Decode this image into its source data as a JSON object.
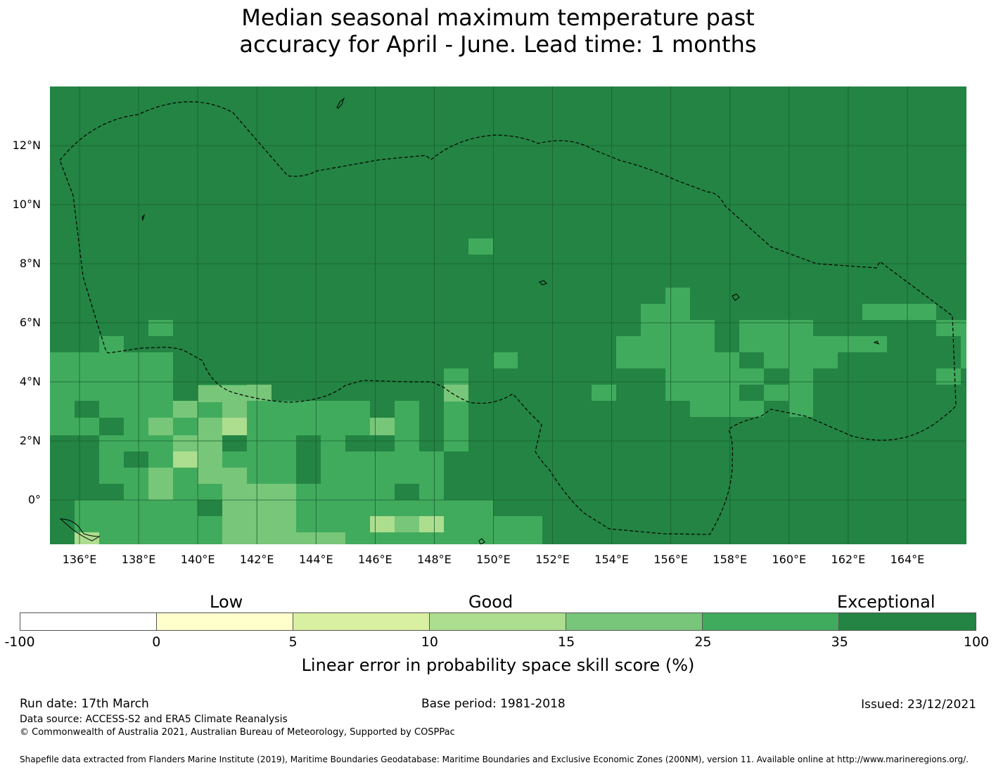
{
  "title": {
    "line1": "Median seasonal maximum temperature past",
    "line2": "accuracy for April - June. Lead time: 1 months"
  },
  "map": {
    "lat_labels": [
      "12°N",
      "10°N",
      "8°N",
      "6°N",
      "4°N",
      "2°N",
      "0°"
    ],
    "lon_labels": [
      "136°E",
      "138°E",
      "140°E",
      "142°E",
      "144°E",
      "146°E",
      "148°E",
      "150°E",
      "152°E",
      "154°E",
      "156°E",
      "158°E",
      "160°E",
      "162°E",
      "164°E"
    ],
    "extent": {
      "lon_min": 135.0,
      "lon_max": 166.0,
      "lat_min": -1.5,
      "lat_max": 14.0
    },
    "grid_resolution_deg": 0.833,
    "background_category": "35 to 100",
    "eez_boundary_color": "#000000"
  },
  "colorbar": {
    "words": {
      "low": "Low",
      "good": "Good",
      "exceptional": "Exceptional"
    },
    "ticks": [
      "-100",
      "0",
      "5",
      "10",
      "15",
      "25",
      "35",
      "100"
    ],
    "colors": [
      "#ffffff",
      "#ffffcc",
      "#d9f0a3",
      "#addd8e",
      "#78c679",
      "#41ab5d",
      "#238443"
    ],
    "label": "Linear error in probability space skill score (%)"
  },
  "footer": {
    "run_date": "Run date: 17th March",
    "base_period": "Base period: 1981-2018",
    "issued": "Issued: 23/12/2021",
    "data_source": "Data source: ACCESS-S2 and ERA5 Climate Reanalysis",
    "copyright": "© Commonwealth of Australia 2021, Australian Bureau of Meteorology, Supported by COSPPac",
    "shapefile": "Shapefile data extracted from Flanders Marine Institute (2019), Maritime Boundaries Geodatabase: Maritime Boundaries and Exclusive Economic Zones (200NM), version 11. Available online at http://www.marineregions.org/."
  }
}
